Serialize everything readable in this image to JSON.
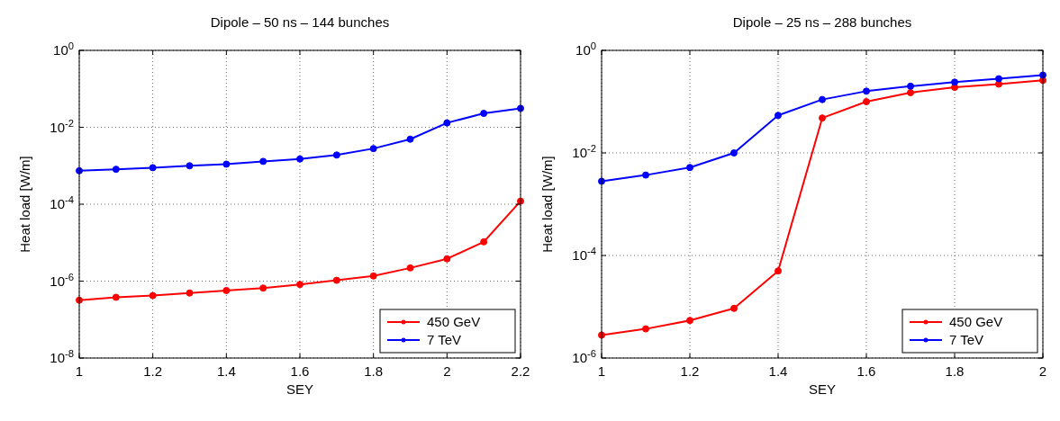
{
  "chart_data": [
    {
      "type": "line",
      "title": "Dipole – 50 ns – 144 bunches",
      "xlabel": "SEY",
      "ylabel": "Heat load [W/m]",
      "log": "y",
      "grid": true,
      "legend": "bottom right",
      "marker": "circle",
      "line_style": "solid",
      "x": [
        1,
        1.1,
        1.2,
        1.3,
        1.4,
        1.5,
        1.6,
        1.7,
        1.8,
        1.9,
        2,
        2.1,
        2.2
      ],
      "xlim": [
        1,
        2.2
      ],
      "xticks": [
        1,
        1.2,
        1.4,
        1.6,
        1.8,
        2,
        2.2
      ],
      "ylim": [
        1e-08,
        1
      ],
      "yticks": [
        {
          "value": 1e-08,
          "label": "10$^{-8}$"
        },
        {
          "value": 1e-06,
          "label": "10$^{-6}$"
        },
        {
          "value": 0.0001,
          "label": "10$^{-4}$"
        },
        {
          "value": 0.01,
          "label": "10$^{-2}$"
        },
        {
          "value": 1,
          "label": "10$^{0}$"
        }
      ],
      "series": [
        {
          "name": "450 GeV",
          "color": "#ff0000",
          "values": [
            3.2e-07,
            3.8e-07,
            4.2e-07,
            4.9e-07,
            5.7e-07,
            6.6e-07,
            8.2e-07,
            1.05e-06,
            1.36e-06,
            2.2e-06,
            3.8e-06,
            1.05e-05,
            0.00012
          ]
        },
        {
          "name": "7 TeV",
          "color": "#0000ff",
          "values": [
            0.00074,
            0.00081,
            0.00089,
            0.001,
            0.0011,
            0.0013,
            0.0015,
            0.0019,
            0.0028,
            0.0049,
            0.013,
            0.023,
            0.031
          ]
        }
      ]
    },
    {
      "type": "line",
      "title": "Dipole – 25 ns – 288 bunches",
      "xlabel": "SEY",
      "ylabel": "Heat load [W/m]",
      "log": "y",
      "grid": true,
      "legend": "bottom right",
      "marker": "circle",
      "line_style": "solid",
      "x": [
        1,
        1.1,
        1.2,
        1.3,
        1.4,
        1.5,
        1.6,
        1.7,
        1.8,
        1.9,
        2
      ],
      "xlim": [
        1,
        2
      ],
      "xticks": [
        1,
        1.2,
        1.4,
        1.6,
        1.8,
        2
      ],
      "ylim": [
        1e-06,
        1
      ],
      "yticks": [
        {
          "value": 1e-06,
          "label": "10$^{-6}$"
        },
        {
          "value": 0.0001,
          "label": "10$^{-4}$"
        },
        {
          "value": 0.01,
          "label": "10$^{-2}$"
        },
        {
          "value": 1,
          "label": "10$^{0}$"
        }
      ],
      "series": [
        {
          "name": "450 GeV",
          "color": "#ff0000",
          "values": [
            2.8e-06,
            3.7e-06,
            5.4e-06,
            9.3e-06,
            5e-05,
            0.048,
            0.1,
            0.15,
            0.19,
            0.22,
            0.26
          ]
        },
        {
          "name": "7 TeV",
          "color": "#0000ff",
          "values": [
            0.0028,
            0.0037,
            0.0052,
            0.01,
            0.054,
            0.11,
            0.16,
            0.2,
            0.24,
            0.28,
            0.33
          ]
        }
      ]
    }
  ]
}
